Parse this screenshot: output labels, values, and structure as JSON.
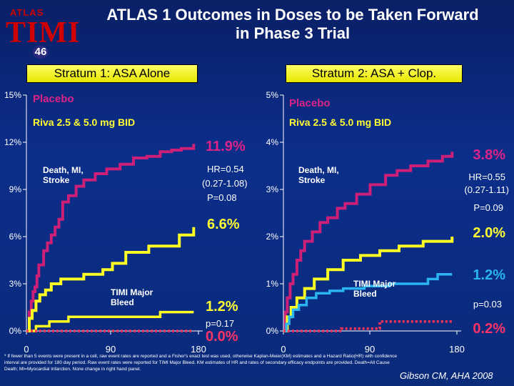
{
  "header": {
    "logo_top": "ATLAS",
    "logo_main": "TIMI",
    "logo_number": "46",
    "title_line1": "ATLAS 1 Outcomes in Doses to be Taken Forward",
    "title_line2": "in Phase 3 Trial"
  },
  "strata": [
    {
      "label": "Stratum 1: ASA Alone"
    },
    {
      "label": "Stratum 2: ASA + Clop."
    }
  ],
  "footer": {
    "note": "* If fewer than 5 events were present in a cell, raw event rates are reported and a Fisher's exact test was used, otherwise Kaplan-Meier(KM) estimates and a Hazard Ratio(HR) with confidence interval are provided for 180 day period. Raw event rates were reported for TIMI Major Bleed. KM estimates of HR and rates of secondary efficacy endpoints are provided. Death=All Cause Death; MI=Myocardial Infarction. None change in right hand panel.",
    "citation": "Gibson CM, AHA 2008"
  },
  "colors": {
    "background": "#0b2a7a",
    "placebo": "#cc1f78",
    "riva": "#ffff22",
    "placebo_bleed": "#ff3355",
    "riva_bleed": "#2ab4f2",
    "stratum_box": "#ffff33"
  },
  "chart_data": [
    {
      "type": "line",
      "panel": "Stratum 1: ASA Alone",
      "x_ticks": [
        "0",
        "90",
        "180"
      ],
      "y_ticks": [
        "0%",
        "3%",
        "6%",
        "9%",
        "12%",
        "15%"
      ],
      "xlim": [
        0,
        180
      ],
      "ylim": [
        0,
        15
      ],
      "legend": [
        "Placebo",
        "Riva 2.5 & 5.0 mg BID"
      ],
      "annotations": {
        "death_mi_stroke": "Death, MI,\nStroke",
        "bleed": "TIMI Major\nBleed",
        "placebo_rate": "11.9%",
        "hr": "HR=0.54",
        "ci": "(0.27-1.08)",
        "p": "P=0.08",
        "riva_rate": "6.6%",
        "bleed_riva_rate": "1.2%",
        "bleed_p": "p=0.17",
        "bleed_placebo_rate": "0.0%"
      },
      "series": [
        {
          "name": "Placebo",
          "role": "efficacy",
          "color": "#cc1f78",
          "x": [
            0,
            3,
            5,
            7,
            9,
            11,
            13,
            18,
            22,
            26,
            30,
            34,
            38,
            44,
            52,
            60,
            72,
            84,
            98,
            112,
            126,
            140,
            152,
            162,
            175
          ],
          "y": [
            0,
            1.2,
            1.9,
            2.5,
            2.8,
            3.5,
            4.2,
            5.1,
            5.6,
            6.1,
            6.6,
            7.1,
            8.2,
            8.6,
            9.2,
            9.6,
            10.0,
            10.3,
            10.6,
            11.0,
            11.1,
            11.4,
            11.5,
            11.6,
            11.9
          ]
        },
        {
          "name": "Riva 2.5 & 5.0 mg BID",
          "role": "efficacy",
          "color": "#ffff22",
          "x": [
            0,
            3,
            6,
            10,
            14,
            20,
            26,
            36,
            60,
            80,
            90,
            104,
            128,
            150,
            160,
            175
          ],
          "y": [
            0,
            0.8,
            1.3,
            1.9,
            2.3,
            2.6,
            3.0,
            3.3,
            3.6,
            3.9,
            4.3,
            5.0,
            5.4,
            5.4,
            6.1,
            6.6
          ]
        },
        {
          "name": "Riva 2.5 & 5.0 mg BID",
          "role": "bleed",
          "color": "#ffff22",
          "x": [
            0,
            10,
            24,
            44,
            140,
            175
          ],
          "y": [
            0,
            0.3,
            0.6,
            0.9,
            1.2,
            1.2
          ]
        },
        {
          "name": "Placebo",
          "role": "bleed",
          "color": "#ff3355",
          "x": [
            0,
            175
          ],
          "y": [
            0,
            0
          ]
        }
      ]
    },
    {
      "type": "line",
      "panel": "Stratum 2: ASA + Clop.",
      "x_ticks": [
        "0",
        "90",
        "180"
      ],
      "y_ticks": [
        "0%",
        "1%",
        "2%",
        "3%",
        "4%",
        "5%"
      ],
      "xlim": [
        0,
        180
      ],
      "ylim": [
        0,
        5
      ],
      "legend": [
        "Placebo",
        "Riva 2.5 & 5.0 mg BID"
      ],
      "annotations": {
        "death_mi_stroke": "Death, MI,\nStroke",
        "bleed": "TIMI Major\nBleed",
        "placebo_rate": "3.8%",
        "hr": "HR=0.55",
        "ci": "(0.27-1.11)",
        "p": "P=0.09",
        "riva_rate": "2.0%",
        "bleed_riva_rate": "1.2%",
        "bleed_p": "p=0.03",
        "bleed_placebo_rate": "0.2%"
      },
      "series": [
        {
          "name": "Placebo",
          "role": "efficacy",
          "color": "#cc1f78",
          "x": [
            0,
            2,
            4,
            7,
            10,
            14,
            18,
            22,
            30,
            38,
            46,
            56,
            64,
            76,
            90,
            106,
            118,
            132,
            150,
            165,
            175
          ],
          "y": [
            0,
            0.4,
            0.7,
            1.0,
            1.2,
            1.5,
            1.7,
            1.9,
            2.1,
            2.3,
            2.4,
            2.6,
            2.7,
            2.9,
            3.1,
            3.3,
            3.4,
            3.5,
            3.6,
            3.7,
            3.8
          ]
        },
        {
          "name": "Riva 2.5 & 5.0 mg BID",
          "role": "efficacy",
          "color": "#ffff22",
          "x": [
            0,
            4,
            8,
            14,
            22,
            32,
            46,
            62,
            80,
            100,
            120,
            145,
            175
          ],
          "y": [
            0,
            0.3,
            0.5,
            0.7,
            0.9,
            1.1,
            1.3,
            1.5,
            1.6,
            1.7,
            1.8,
            1.9,
            2.0
          ]
        },
        {
          "name": "Riva 2.5 & 5.0 mg BID",
          "role": "bleed",
          "color": "#2ab4f2",
          "x": [
            0,
            3,
            6,
            10,
            16,
            24,
            34,
            48,
            62,
            84,
            100,
            110,
            130,
            150,
            160,
            175
          ],
          "y": [
            0,
            0.15,
            0.3,
            0.45,
            0.55,
            0.7,
            0.8,
            0.85,
            0.9,
            0.95,
            0.95,
            1.0,
            1.0,
            1.1,
            1.2,
            1.2
          ]
        },
        {
          "name": "Placebo",
          "role": "bleed",
          "color": "#ff3355",
          "x": [
            0,
            60,
            100,
            175
          ],
          "y": [
            0,
            0.05,
            0.2,
            0.2
          ]
        }
      ]
    }
  ]
}
